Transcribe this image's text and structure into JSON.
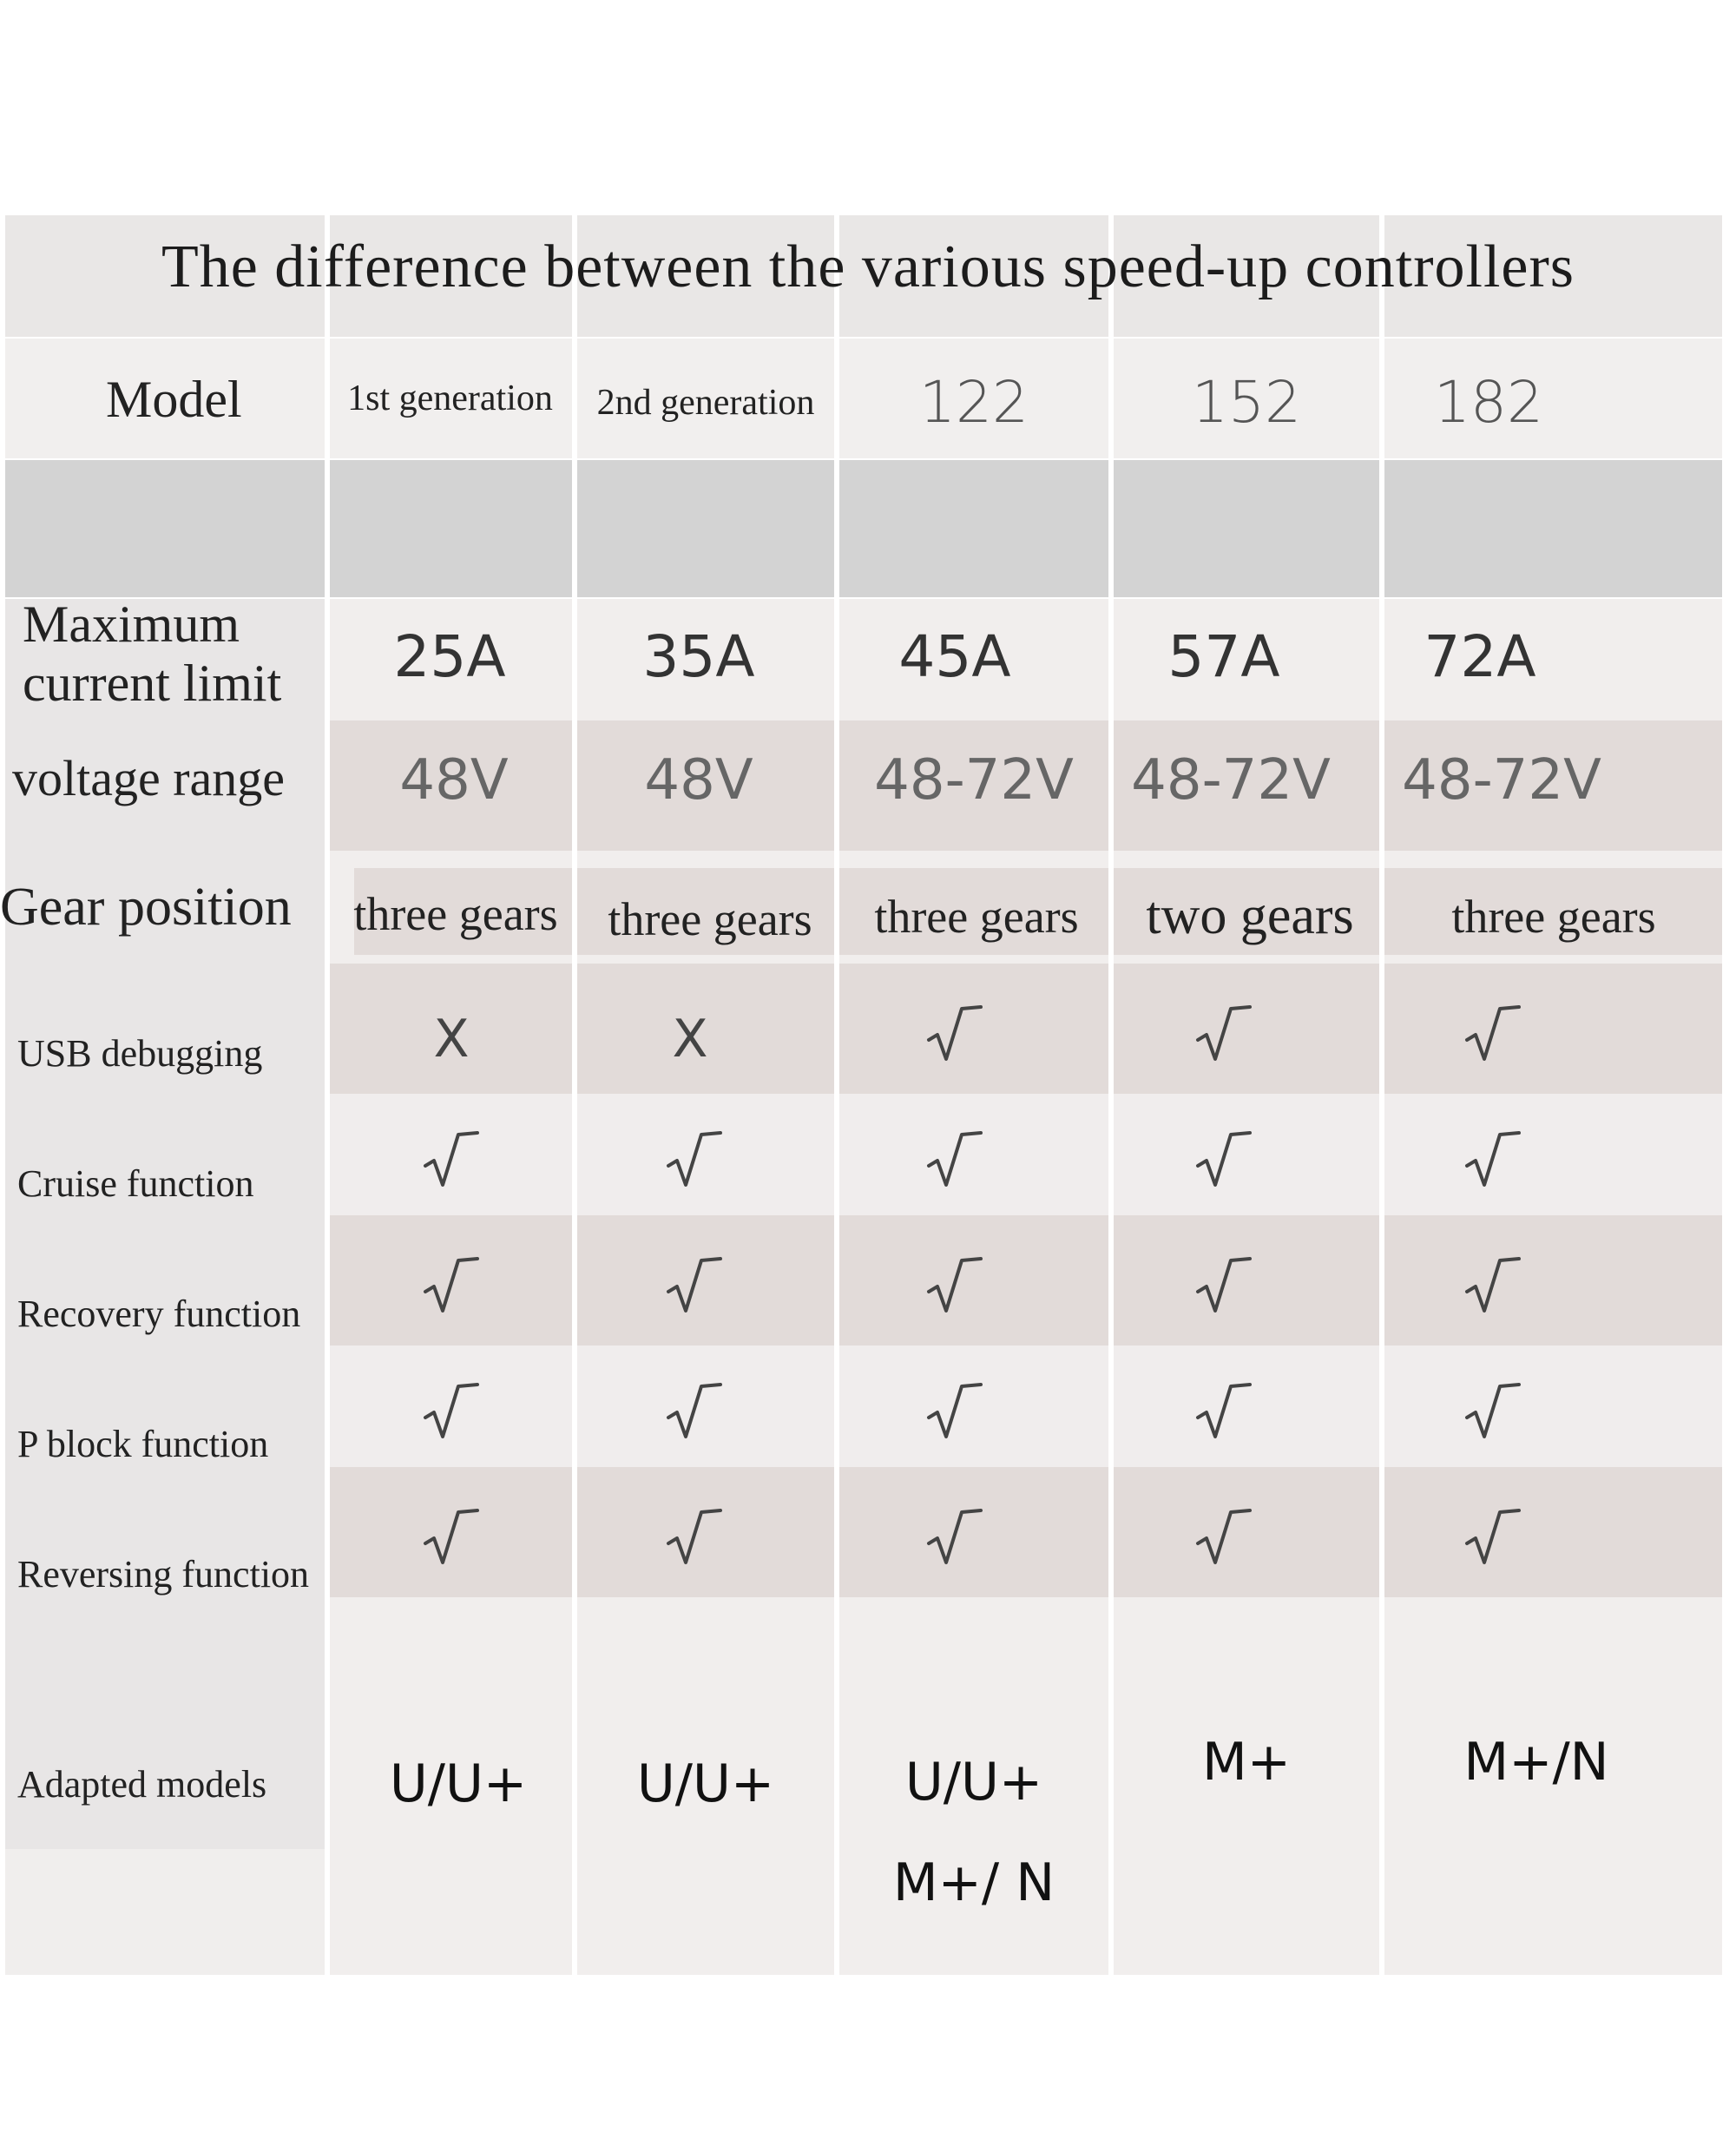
{
  "title": "The difference between the various speed-up controllers",
  "header": {
    "model_label": "Model",
    "columns": [
      "1st generation",
      "2nd generation",
      "122",
      "152",
      "182"
    ]
  },
  "rows": {
    "max_current": {
      "label": "Maximum current limit",
      "values": [
        "25A",
        "35A",
        "45A",
        "57A",
        "72A"
      ]
    },
    "voltage": {
      "label": "voltage range",
      "values": [
        "48V",
        "48V",
        "48-72V",
        "48-72V",
        "48-72V"
      ]
    },
    "gear": {
      "label": "Gear position",
      "values": [
        "three gears",
        "three gears",
        "three gears",
        "two gears",
        "three gears"
      ]
    },
    "usb": {
      "label": "USB debugging",
      "values": [
        "X",
        "X",
        "√",
        "√",
        "√"
      ]
    },
    "cruise": {
      "label": "Cruise function",
      "values": [
        "√",
        "√",
        "√",
        "√",
        "√"
      ]
    },
    "recovery": {
      "label": "Recovery function",
      "values": [
        "√",
        "√",
        "√",
        "√",
        "√"
      ]
    },
    "pblock": {
      "label": "P block function",
      "values": [
        "√",
        "√",
        "√",
        "√",
        "√"
      ]
    },
    "reversing": {
      "label": "Reversing function",
      "values": [
        "√",
        "√",
        "√",
        "√",
        "√"
      ]
    },
    "adapted": {
      "label": "Adapted models",
      "values": [
        "U/U+",
        "U/U+",
        "U/U+\nM+/ N",
        "M+",
        "M+/N"
      ]
    }
  }
}
